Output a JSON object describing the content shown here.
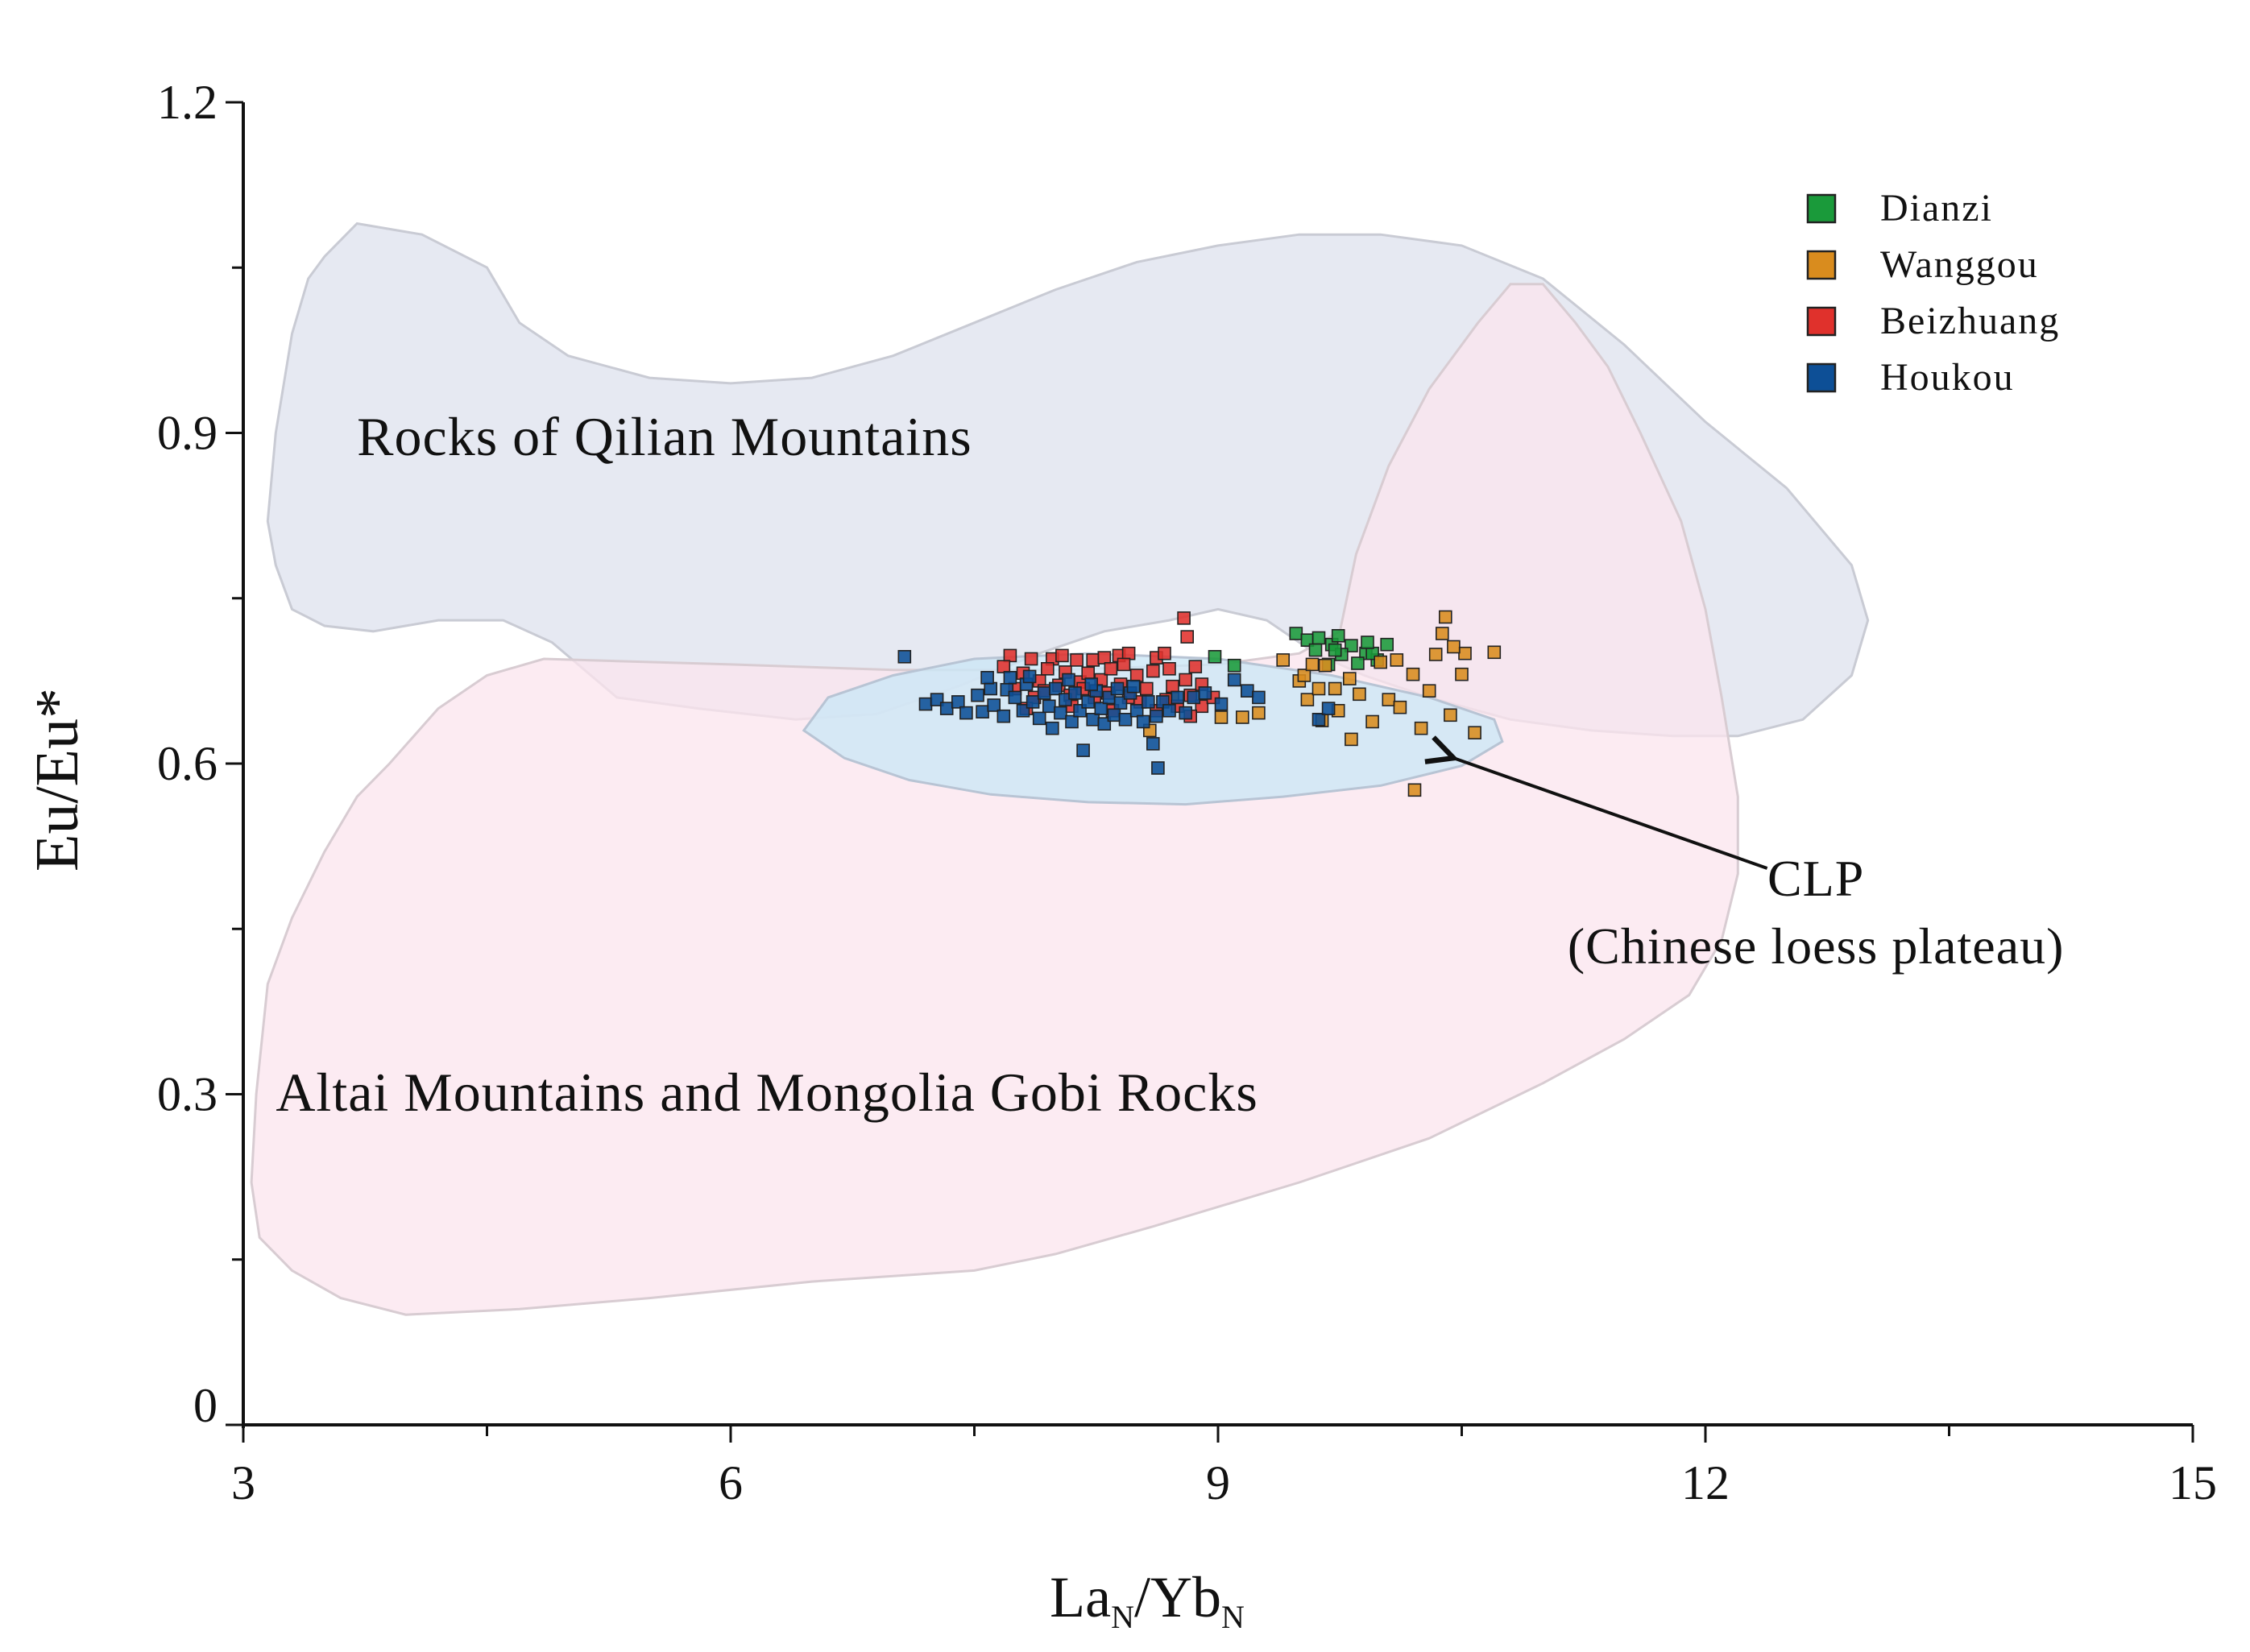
{
  "chart_data": {
    "type": "scatter",
    "xlabel": {
      "main": "La",
      "sub1": "N",
      "slash": "/Yb",
      "sub2": "N"
    },
    "ylabel": "Eu/Eu*",
    "xlim": [
      3,
      15
    ],
    "ylim": [
      0,
      1.2
    ],
    "x_ticks": [
      {
        "value": 3,
        "label": "3"
      },
      {
        "value": 6,
        "label": "6"
      },
      {
        "value": 9,
        "label": "9"
      },
      {
        "value": 12,
        "label": "12"
      },
      {
        "value": 15,
        "label": "15"
      }
    ],
    "x_minor_ticks": [
      4.5,
      7.5,
      10.5,
      13.5
    ],
    "y_ticks": [
      {
        "value": 0,
        "label": "0"
      },
      {
        "value": 0.3,
        "label": "0.3"
      },
      {
        "value": 0.6,
        "label": "0.6"
      },
      {
        "value": 0.9,
        "label": "0.9"
      },
      {
        "value": 1.2,
        "label": "1.2"
      }
    ],
    "y_minor_ticks": [
      0.15,
      0.45,
      0.75,
      1.05
    ],
    "grid": false,
    "legend_position": "top-right",
    "regions": [
      {
        "label": "Rocks of Qilian Mountains",
        "label_pos": [
          3.7,
          0.88
        ],
        "fill": "#dde2ee",
        "stroke": "#c9cbd4",
        "points": [
          [
            3.5,
            1.06
          ],
          [
            3.7,
            1.09
          ],
          [
            4.1,
            1.08
          ],
          [
            4.5,
            1.05
          ],
          [
            4.7,
            1.0
          ],
          [
            5.0,
            0.97
          ],
          [
            5.5,
            0.95
          ],
          [
            6.0,
            0.945
          ],
          [
            6.5,
            0.95
          ],
          [
            7.0,
            0.97
          ],
          [
            7.5,
            1.0
          ],
          [
            8.0,
            1.03
          ],
          [
            8.5,
            1.055
          ],
          [
            9.0,
            1.07
          ],
          [
            9.5,
            1.08
          ],
          [
            10.0,
            1.08
          ],
          [
            10.5,
            1.07
          ],
          [
            11.0,
            1.04
          ],
          [
            11.5,
            0.98
          ],
          [
            12.0,
            0.91
          ],
          [
            12.5,
            0.85
          ],
          [
            12.9,
            0.78
          ],
          [
            13.0,
            0.73
          ],
          [
            12.9,
            0.68
          ],
          [
            12.6,
            0.64
          ],
          [
            12.2,
            0.625
          ],
          [
            11.8,
            0.625
          ],
          [
            11.3,
            0.63
          ],
          [
            10.8,
            0.64
          ],
          [
            10.3,
            0.66
          ],
          [
            9.9,
            0.68
          ],
          [
            9.6,
            0.7
          ],
          [
            9.3,
            0.73
          ],
          [
            9.0,
            0.74
          ],
          [
            8.7,
            0.73
          ],
          [
            8.3,
            0.72
          ],
          [
            7.9,
            0.7
          ],
          [
            7.4,
            0.67
          ],
          [
            6.9,
            0.645
          ],
          [
            6.4,
            0.64
          ],
          [
            5.8,
            0.65
          ],
          [
            5.3,
            0.66
          ],
          [
            4.9,
            0.71
          ],
          [
            4.6,
            0.73
          ],
          [
            4.2,
            0.73
          ],
          [
            3.8,
            0.72
          ],
          [
            3.5,
            0.725
          ],
          [
            3.3,
            0.74
          ],
          [
            3.2,
            0.78
          ],
          [
            3.15,
            0.82
          ],
          [
            3.2,
            0.9
          ],
          [
            3.3,
            0.99
          ],
          [
            3.4,
            1.04
          ]
        ]
      },
      {
        "label": "Altai Mountains and Mongolia Gobi Rocks",
        "label_pos": [
          3.2,
          0.285
        ],
        "fill": "#fbe4ee",
        "stroke": "#d8ccd2",
        "points": [
          [
            3.1,
            0.17
          ],
          [
            3.3,
            0.14
          ],
          [
            3.6,
            0.115
          ],
          [
            4.0,
            0.1
          ],
          [
            4.7,
            0.105
          ],
          [
            5.5,
            0.115
          ],
          [
            6.5,
            0.13
          ],
          [
            7.5,
            0.14
          ],
          [
            8.0,
            0.155
          ],
          [
            8.6,
            0.18
          ],
          [
            9.5,
            0.22
          ],
          [
            10.3,
            0.26
          ],
          [
            11.0,
            0.31
          ],
          [
            11.5,
            0.35
          ],
          [
            11.9,
            0.39
          ],
          [
            12.1,
            0.44
          ],
          [
            12.2,
            0.5
          ],
          [
            12.2,
            0.57
          ],
          [
            12.1,
            0.66
          ],
          [
            12.0,
            0.74
          ],
          [
            11.85,
            0.82
          ],
          [
            11.6,
            0.9
          ],
          [
            11.4,
            0.96
          ],
          [
            11.2,
            1.0
          ],
          [
            11.0,
            1.035
          ],
          [
            10.8,
            1.035
          ],
          [
            10.6,
            1.0
          ],
          [
            10.3,
            0.94
          ],
          [
            10.05,
            0.87
          ],
          [
            9.85,
            0.79
          ],
          [
            9.75,
            0.72
          ],
          [
            9.5,
            0.7
          ],
          [
            9.0,
            0.69
          ],
          [
            8.0,
            0.685
          ],
          [
            7.0,
            0.685
          ],
          [
            6.0,
            0.69
          ],
          [
            5.3,
            0.693
          ],
          [
            4.85,
            0.695
          ],
          [
            4.5,
            0.68
          ],
          [
            4.2,
            0.65
          ],
          [
            3.9,
            0.6
          ],
          [
            3.7,
            0.57
          ],
          [
            3.5,
            0.52
          ],
          [
            3.3,
            0.46
          ],
          [
            3.15,
            0.4
          ],
          [
            3.08,
            0.3
          ],
          [
            3.05,
            0.22
          ]
        ]
      },
      {
        "label": "CLP\n(Chinese loess plateau)",
        "fill": "#cbe7f6",
        "fill_opacity": 0.78,
        "stroke": "#b8c4d4",
        "label_pos": [
          12.68,
          0.48
        ],
        "arrow_from": [
          12.38,
          0.505
        ],
        "arrow_to": [
          10.45,
          0.605
        ],
        "points": [
          [
            6.45,
            0.63
          ],
          [
            6.7,
            0.605
          ],
          [
            7.1,
            0.585
          ],
          [
            7.6,
            0.572
          ],
          [
            8.2,
            0.565
          ],
          [
            8.8,
            0.563
          ],
          [
            9.4,
            0.57
          ],
          [
            10.0,
            0.58
          ],
          [
            10.5,
            0.598
          ],
          [
            10.75,
            0.62
          ],
          [
            10.7,
            0.64
          ],
          [
            10.3,
            0.66
          ],
          [
            9.7,
            0.68
          ],
          [
            9.0,
            0.695
          ],
          [
            8.2,
            0.7
          ],
          [
            7.5,
            0.695
          ],
          [
            7.0,
            0.68
          ],
          [
            6.6,
            0.66
          ]
        ]
      }
    ],
    "series": [
      {
        "name": "Dianzi",
        "color": "#1a9a3a",
        "points": [
          [
            9.48,
            0.718
          ],
          [
            9.55,
            0.712
          ],
          [
            9.62,
            0.714
          ],
          [
            9.7,
            0.708
          ],
          [
            9.74,
            0.716
          ],
          [
            9.82,
            0.707
          ],
          [
            9.91,
            0.7
          ],
          [
            9.98,
            0.694
          ],
          [
            10.04,
            0.708
          ],
          [
            9.6,
            0.703
          ],
          [
            9.76,
            0.699
          ],
          [
            9.68,
            0.69
          ],
          [
            9.86,
            0.691
          ],
          [
            9.95,
            0.7
          ],
          [
            8.98,
            0.697
          ],
          [
            9.1,
            0.689
          ],
          [
            9.92,
            0.71
          ],
          [
            9.72,
            0.703
          ]
        ]
      },
      {
        "name": "Wanggou",
        "color": "#d98c1e",
        "points": [
          [
            9.25,
            0.646
          ],
          [
            9.4,
            0.694
          ],
          [
            9.5,
            0.675
          ],
          [
            9.55,
            0.658
          ],
          [
            9.62,
            0.668
          ],
          [
            9.64,
            0.639
          ],
          [
            9.72,
            0.668
          ],
          [
            9.74,
            0.648
          ],
          [
            9.82,
            0.622
          ],
          [
            9.87,
            0.663
          ],
          [
            9.95,
            0.638
          ],
          [
            10.0,
            0.692
          ],
          [
            10.05,
            0.658
          ],
          [
            10.12,
            0.651
          ],
          [
            10.2,
            0.681
          ],
          [
            10.21,
            0.576
          ],
          [
            10.25,
            0.632
          ],
          [
            10.3,
            0.666
          ],
          [
            10.34,
            0.699
          ],
          [
            10.4,
            0.733
          ],
          [
            10.43,
            0.644
          ],
          [
            10.5,
            0.681
          ],
          [
            10.52,
            0.7
          ],
          [
            10.58,
            0.628
          ],
          [
            10.7,
            0.701
          ],
          [
            10.45,
            0.706
          ],
          [
            10.38,
            0.718
          ],
          [
            9.53,
            0.68
          ],
          [
            9.66,
            0.689
          ],
          [
            8.58,
            0.63
          ],
          [
            8.72,
            0.66
          ],
          [
            9.02,
            0.642
          ],
          [
            9.15,
            0.642
          ],
          [
            10.1,
            0.694
          ],
          [
            9.81,
            0.677
          ],
          [
            9.58,
            0.69
          ]
        ]
      },
      {
        "name": "Beizhuang",
        "color": "#e0312c",
        "points": [
          [
            7.72,
            0.698
          ],
          [
            7.85,
            0.695
          ],
          [
            7.98,
            0.695
          ],
          [
            8.04,
            0.698
          ],
          [
            8.13,
            0.694
          ],
          [
            8.23,
            0.694
          ],
          [
            8.3,
            0.696
          ],
          [
            8.39,
            0.698
          ],
          [
            8.45,
            0.7
          ],
          [
            8.62,
            0.696
          ],
          [
            8.67,
            0.7
          ],
          [
            8.79,
            0.732
          ],
          [
            8.81,
            0.715
          ],
          [
            8.86,
            0.688
          ],
          [
            7.8,
            0.682
          ],
          [
            7.9,
            0.675
          ],
          [
            7.95,
            0.686
          ],
          [
            8.06,
            0.683
          ],
          [
            8.15,
            0.674
          ],
          [
            8.2,
            0.682
          ],
          [
            8.28,
            0.676
          ],
          [
            8.34,
            0.686
          ],
          [
            8.4,
            0.672
          ],
          [
            8.5,
            0.68
          ],
          [
            8.56,
            0.668
          ],
          [
            8.6,
            0.684
          ],
          [
            8.72,
            0.67
          ],
          [
            8.8,
            0.676
          ],
          [
            8.83,
            0.662
          ],
          [
            8.9,
            0.672
          ],
          [
            7.75,
            0.668
          ],
          [
            7.87,
            0.66
          ],
          [
            7.93,
            0.666
          ],
          [
            8.02,
            0.671
          ],
          [
            8.09,
            0.662
          ],
          [
            8.17,
            0.668
          ],
          [
            8.24,
            0.66
          ],
          [
            8.32,
            0.664
          ],
          [
            8.45,
            0.66
          ],
          [
            8.52,
            0.656
          ],
          [
            8.68,
            0.658
          ],
          [
            8.75,
            0.652
          ],
          [
            8.9,
            0.652
          ],
          [
            8.97,
            0.66
          ],
          [
            7.82,
            0.65
          ],
          [
            8.1,
            0.652
          ],
          [
            8.35,
            0.648
          ],
          [
            8.62,
            0.648
          ],
          [
            8.83,
            0.643
          ],
          [
            7.68,
            0.688
          ],
          [
            8.42,
            0.69
          ],
          [
            8.7,
            0.686
          ]
        ]
      },
      {
        "name": "Houkou",
        "color": "#0d4f96",
        "points": [
          [
            7.07,
            0.697
          ],
          [
            7.2,
            0.654
          ],
          [
            7.27,
            0.658
          ],
          [
            7.33,
            0.65
          ],
          [
            7.4,
            0.656
          ],
          [
            7.45,
            0.646
          ],
          [
            7.52,
            0.662
          ],
          [
            7.55,
            0.647
          ],
          [
            7.6,
            0.668
          ],
          [
            7.62,
            0.653
          ],
          [
            7.68,
            0.643
          ],
          [
            7.7,
            0.667
          ],
          [
            7.75,
            0.66
          ],
          [
            7.8,
            0.648
          ],
          [
            7.82,
            0.672
          ],
          [
            7.86,
            0.656
          ],
          [
            7.9,
            0.641
          ],
          [
            7.93,
            0.664
          ],
          [
            7.96,
            0.652
          ],
          [
            7.98,
            0.632
          ],
          [
            8.0,
            0.668
          ],
          [
            8.03,
            0.646
          ],
          [
            8.06,
            0.658
          ],
          [
            8.1,
            0.638
          ],
          [
            8.12,
            0.664
          ],
          [
            8.15,
            0.648
          ],
          [
            8.17,
            0.612
          ],
          [
            8.2,
            0.656
          ],
          [
            8.23,
            0.64
          ],
          [
            8.25,
            0.666
          ],
          [
            8.28,
            0.65
          ],
          [
            8.3,
            0.636
          ],
          [
            8.33,
            0.66
          ],
          [
            8.36,
            0.644
          ],
          [
            8.4,
            0.655
          ],
          [
            8.43,
            0.64
          ],
          [
            8.46,
            0.664
          ],
          [
            8.5,
            0.648
          ],
          [
            8.54,
            0.638
          ],
          [
            8.57,
            0.656
          ],
          [
            8.6,
            0.618
          ],
          [
            8.62,
            0.643
          ],
          [
            8.66,
            0.656
          ],
          [
            8.63,
            0.596
          ],
          [
            8.7,
            0.648
          ],
          [
            8.75,
            0.66
          ],
          [
            8.8,
            0.646
          ],
          [
            8.85,
            0.66
          ],
          [
            8.92,
            0.664
          ],
          [
            9.02,
            0.654
          ],
          [
            9.1,
            0.676
          ],
          [
            9.18,
            0.666
          ],
          [
            9.25,
            0.66
          ],
          [
            7.58,
            0.678
          ],
          [
            7.72,
            0.678
          ],
          [
            7.84,
            0.679
          ],
          [
            8.08,
            0.676
          ],
          [
            8.22,
            0.672
          ],
          [
            8.38,
            0.668
          ],
          [
            8.48,
            0.67
          ],
          [
            9.62,
            0.64
          ],
          [
            9.68,
            0.65
          ]
        ]
      }
    ]
  }
}
